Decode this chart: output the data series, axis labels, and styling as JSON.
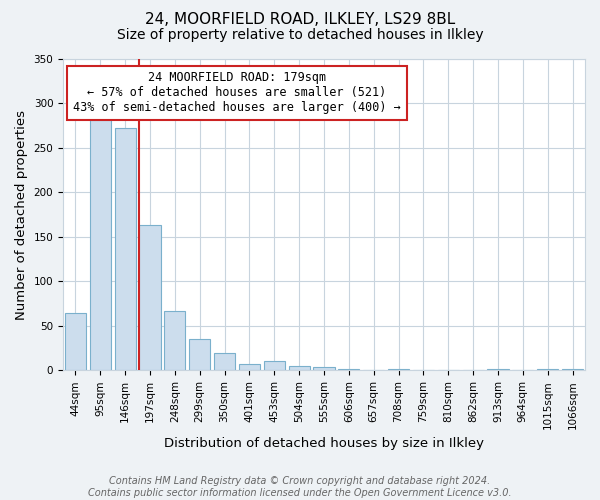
{
  "title": "24, MOORFIELD ROAD, ILKLEY, LS29 8BL",
  "subtitle": "Size of property relative to detached houses in Ilkley",
  "xlabel": "Distribution of detached houses by size in Ilkley",
  "ylabel": "Number of detached properties",
  "bin_labels": [
    "44sqm",
    "95sqm",
    "146sqm",
    "197sqm",
    "248sqm",
    "299sqm",
    "350sqm",
    "401sqm",
    "453sqm",
    "504sqm",
    "555sqm",
    "606sqm",
    "657sqm",
    "708sqm",
    "759sqm",
    "810sqm",
    "862sqm",
    "913sqm",
    "964sqm",
    "1015sqm",
    "1066sqm"
  ],
  "bar_heights": [
    65,
    281,
    272,
    163,
    67,
    35,
    20,
    7,
    10,
    5,
    4,
    1,
    0,
    2,
    0,
    0,
    0,
    1,
    0,
    2,
    2
  ],
  "bar_color": "#ccdded",
  "bar_edge_color": "#7ab0cc",
  "annotation_line1": "24 MOORFIELD ROAD: 179sqm",
  "annotation_line2": "← 57% of detached houses are smaller (521)",
  "annotation_line3": "43% of semi-detached houses are larger (400) →",
  "annotation_box_color": "#ffffff",
  "annotation_box_edge_color": "#cc2222",
  "vline_color": "#cc2222",
  "vline_bar_index": 3,
  "ylim": [
    0,
    350
  ],
  "yticks": [
    0,
    50,
    100,
    150,
    200,
    250,
    300,
    350
  ],
  "footer_line1": "Contains HM Land Registry data © Crown copyright and database right 2024.",
  "footer_line2": "Contains public sector information licensed under the Open Government Licence v3.0.",
  "background_color": "#eef2f5",
  "plot_background_color": "#ffffff",
  "grid_color": "#c8d4de",
  "title_fontsize": 11,
  "subtitle_fontsize": 10,
  "axis_label_fontsize": 9.5,
  "tick_fontsize": 7.5,
  "annotation_fontsize": 8.5,
  "footer_fontsize": 7
}
